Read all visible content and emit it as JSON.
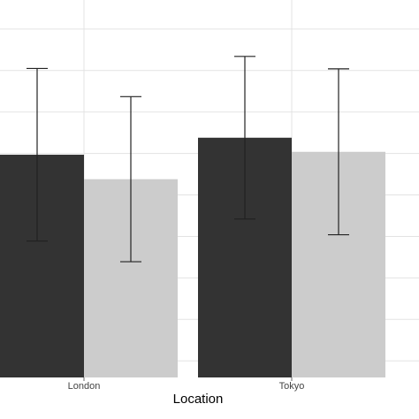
{
  "chart_data": {
    "type": "bar",
    "x_label": "Location",
    "categories": [
      "London",
      "Tokyo"
    ],
    "series": [
      {
        "color": "#333333",
        "values": [
          5.37,
          5.78
        ],
        "errors": [
          2.08,
          1.96
        ]
      },
      {
        "color": "#cccccc",
        "values": [
          4.78,
          5.44
        ],
        "errors": [
          1.99,
          2.0
        ]
      }
    ],
    "ylim": [
      0,
      9.1
    ],
    "ygrid": [
      0.4,
      1.4,
      2.4,
      3.4,
      4.4,
      5.4,
      6.4,
      7.4,
      8.4
    ],
    "grid": true
  }
}
